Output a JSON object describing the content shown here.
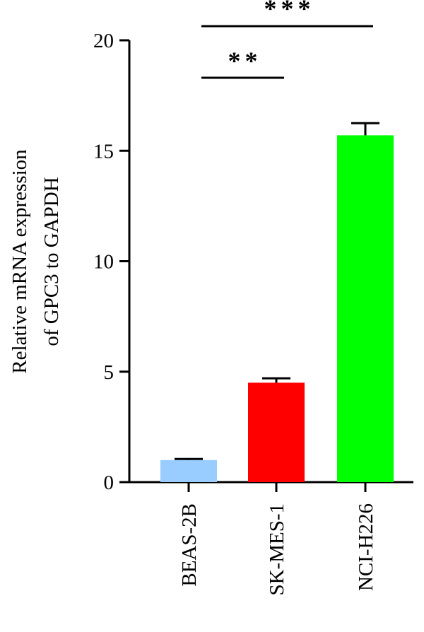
{
  "chart_data": {
    "type": "bar",
    "categories": [
      "BEAS-2B",
      "SK-MES-1",
      "NCI-H226"
    ],
    "values": [
      1.0,
      4.5,
      15.7
    ],
    "errors": [
      0.05,
      0.2,
      0.55
    ],
    "bar_colors": [
      "#99ccff",
      "#ff0000",
      "#00ff00"
    ],
    "ylabel_lines": [
      "Relative mRNA expression",
      "of GPC3 to GAPDH"
    ],
    "xlabel": "",
    "ylim": [
      0,
      20
    ],
    "yticks": [
      0,
      5,
      10,
      15,
      20
    ],
    "grid": false,
    "significance": [
      {
        "from": "BEAS-2B",
        "to": "SK-MES-1",
        "label": "**"
      },
      {
        "from": "BEAS-2B",
        "to": "NCI-H226",
        "label": "***"
      }
    ]
  }
}
